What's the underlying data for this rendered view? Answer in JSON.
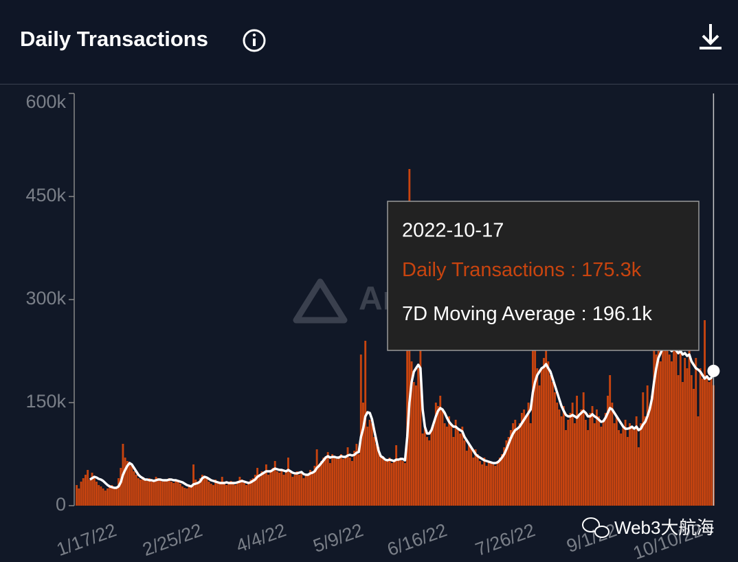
{
  "chart_data": {
    "type": "bar",
    "title": "Daily Transactions",
    "categories": [
      null,
      null,
      null,
      null,
      null,
      null,
      null,
      null,
      null,
      null,
      null,
      null,
      null,
      null,
      null,
      null,
      "1/17/22",
      null,
      null,
      null,
      null,
      null,
      null,
      null,
      null,
      null,
      null,
      null,
      null,
      null,
      null,
      null,
      null,
      null,
      null,
      null,
      null,
      null,
      null,
      null,
      null,
      null,
      null,
      null,
      null,
      null,
      null,
      null,
      null,
      null,
      null,
      null,
      null,
      null,
      null,
      "2/25/22",
      null,
      null,
      null,
      null,
      null,
      null,
      null,
      null,
      null,
      null,
      null,
      null,
      null,
      null,
      null,
      null,
      null,
      null,
      null,
      null,
      null,
      null,
      null,
      null,
      null,
      null,
      null,
      null,
      null,
      null,
      null,
      null,
      null,
      null,
      null,
      null,
      null,
      "4/4/22",
      null,
      null,
      null,
      null,
      null,
      null,
      null,
      null,
      null,
      null,
      null,
      null,
      null,
      null,
      null,
      null,
      null,
      null,
      null,
      null,
      null,
      null,
      null,
      null,
      null,
      null,
      null,
      null,
      null,
      null,
      null,
      null,
      null,
      null,
      "5/9/22",
      null,
      null,
      null,
      null,
      null,
      null,
      null,
      null,
      null,
      null,
      null,
      null,
      null,
      null,
      null,
      null,
      null,
      null,
      null,
      null,
      null,
      null,
      null,
      null,
      null,
      null,
      null,
      null,
      null,
      null,
      null,
      null,
      null,
      null,
      null,
      null,
      null,
      "6/16/22",
      null,
      null,
      null,
      null,
      null,
      null,
      null,
      null,
      null,
      null,
      null,
      null,
      null,
      null,
      null,
      null,
      null,
      null,
      null,
      null,
      null,
      null,
      null,
      null,
      null,
      null,
      null,
      null,
      null,
      null,
      null,
      null,
      null,
      null,
      null,
      null,
      null,
      null,
      null,
      "7/26/22",
      null,
      null,
      null,
      null,
      null,
      null,
      null,
      null,
      null,
      null,
      null,
      null,
      null,
      null,
      null,
      null,
      null,
      null,
      null,
      null,
      null,
      null,
      null,
      null,
      null,
      null,
      null,
      null,
      null,
      null,
      null,
      null,
      null,
      null,
      null,
      null,
      "9/1/22",
      null,
      null,
      null,
      null,
      null,
      null,
      null,
      null,
      null,
      null,
      null,
      null,
      null,
      null,
      null,
      null,
      null,
      null,
      null,
      null,
      null,
      null,
      null,
      null,
      null,
      null,
      null,
      null,
      null,
      null,
      null,
      null,
      null,
      null,
      null,
      null,
      null,
      null,
      "10/10/22",
      null,
      null,
      null,
      null,
      null,
      null,
      null
    ],
    "series": [
      {
        "name": "Daily Transactions",
        "type": "bar",
        "color": "#c8440f",
        "values": [
          30000,
          25000,
          35000,
          40000,
          45000,
          52000,
          38000,
          48000,
          42000,
          35000,
          30000,
          28000,
          25000,
          22000,
          25000,
          28000,
          30000,
          26000,
          25000,
          40000,
          55000,
          90000,
          70000,
          65000,
          60000,
          58000,
          50000,
          45000,
          40000,
          38000,
          42000,
          38000,
          36000,
          40000,
          35000,
          38000,
          42000,
          40000,
          37000,
          35000,
          38000,
          36000,
          40000,
          35000,
          33000,
          38000,
          36000,
          32000,
          28000,
          26000,
          25000,
          30000,
          28000,
          60000,
          38000,
          35000,
          40000,
          45000,
          42000,
          40000,
          35000,
          32000,
          30000,
          38000,
          33000,
          35000,
          42000,
          35000,
          30000,
          32000,
          36000,
          33000,
          30000,
          35000,
          42000,
          38000,
          33000,
          30000,
          35000,
          38000,
          40000,
          45000,
          55000,
          42000,
          50000,
          48000,
          60000,
          45000,
          52000,
          55000,
          65000,
          50000,
          48000,
          52000,
          45000,
          50000,
          70000,
          48000,
          42000,
          45000,
          50000,
          45000,
          48000,
          40000,
          44000,
          46000,
          52000,
          50000,
          58000,
          82000,
          60000,
          65000,
          70000,
          72000,
          78000,
          62000,
          75000,
          70000,
          68000,
          72000,
          75000,
          68000,
          72000,
          85000,
          70000,
          65000,
          80000,
          90000,
          75000,
          220000,
          150000,
          240000,
          115000,
          125000,
          120000,
          100000,
          90000,
          85000,
          70000,
          72000,
          65000,
          68000,
          70000,
          62000,
          64000,
          88000,
          66000,
          70000,
          65000,
          62000,
          240000,
          490000,
          210000,
          180000,
          175000,
          200000,
          230000,
          105000,
          115000,
          100000,
          95000,
          110000,
          120000,
          150000,
          145000,
          160000,
          140000,
          120000,
          115000,
          130000,
          120000,
          100000,
          125000,
          110000,
          105000,
          115000,
          95000,
          80000,
          90000,
          85000,
          70000,
          82000,
          75000,
          65000,
          60000,
          70000,
          58000,
          65000,
          62000,
          60000,
          58000,
          65000,
          70000,
          75000,
          85000,
          95000,
          100000,
          110000,
          120000,
          125000,
          110000,
          120000,
          135000,
          140000,
          130000,
          150000,
          120000,
          250000,
          230000,
          200000,
          175000,
          200000,
          215000,
          240000,
          210000,
          190000,
          180000,
          165000,
          150000,
          140000,
          130000,
          145000,
          110000,
          125000,
          135000,
          150000,
          120000,
          160000,
          130000,
          140000,
          165000,
          125000,
          110000,
          135000,
          145000,
          120000,
          140000,
          130000,
          115000,
          125000,
          135000,
          160000,
          190000,
          150000,
          120000,
          130000,
          110000,
          105000,
          115000,
          125000,
          100000,
          120000,
          115000,
          110000,
          130000,
          85000,
          120000,
          165000,
          130000,
          175000,
          140000,
          160000,
          250000,
          220000,
          280000,
          210000,
          240000,
          260000,
          230000,
          220000,
          210000,
          280000,
          230000,
          190000,
          250000,
          180000,
          215000,
          200000,
          230000,
          190000,
          170000,
          215000,
          130000,
          200000,
          185000,
          270000,
          190000,
          180000,
          185000,
          175300
        ]
      },
      {
        "name": "7D Moving Average",
        "type": "line",
        "color": "#ffffff",
        "values": [
          null,
          null,
          null,
          null,
          null,
          null,
          38000,
          40000,
          42000,
          41000,
          39000,
          38000,
          36000,
          33000,
          30000,
          28000,
          27000,
          26000,
          26000,
          28000,
          34000,
          45000,
          52000,
          58000,
          62000,
          60000,
          55000,
          50000,
          45000,
          42000,
          40000,
          38000,
          38000,
          37000,
          37000,
          36000,
          37000,
          38000,
          38000,
          37000,
          37000,
          37000,
          38000,
          38000,
          37000,
          37000,
          36000,
          35000,
          34000,
          32000,
          30000,
          29000,
          28000,
          31000,
          32000,
          33000,
          35000,
          40000,
          42000,
          41000,
          39000,
          37000,
          36000,
          35000,
          34000,
          33000,
          33000,
          33000,
          34000,
          33000,
          33000,
          33000,
          33000,
          34000,
          35000,
          36000,
          35000,
          34000,
          33000,
          34000,
          36000,
          38000,
          42000,
          44000,
          46000,
          48000,
          50000,
          50000,
          50000,
          52000,
          54000,
          53000,
          52000,
          52000,
          51000,
          50000,
          52000,
          50000,
          48000,
          47000,
          47000,
          48000,
          49000,
          46000,
          45000,
          45000,
          47000,
          48000,
          50000,
          55000,
          58000,
          62000,
          66000,
          70000,
          72000,
          70000,
          71000,
          71000,
          70000,
          70000,
          72000,
          71000,
          71000,
          73000,
          74000,
          73000,
          74000,
          77000,
          78000,
          100000,
          112000,
          130000,
          136000,
          135000,
          126000,
          110000,
          95000,
          80000,
          72000,
          70000,
          67000,
          66000,
          67000,
          66000,
          65000,
          67000,
          67000,
          68000,
          68000,
          66000,
          100000,
          150000,
          180000,
          195000,
          200000,
          205000,
          200000,
          140000,
          115000,
          105000,
          105000,
          110000,
          120000,
          130000,
          138000,
          142000,
          140000,
          135000,
          128000,
          122000,
          118000,
          115000,
          115000,
          112000,
          110000,
          108000,
          100000,
          95000,
          90000,
          85000,
          80000,
          75000,
          72000,
          70000,
          68000,
          66000,
          65000,
          64000,
          63000,
          62000,
          62000,
          63000,
          66000,
          70000,
          75000,
          82000,
          90000,
          98000,
          105000,
          110000,
          112000,
          115000,
          120000,
          125000,
          130000,
          135000,
          140000,
          165000,
          180000,
          190000,
          195000,
          200000,
          202000,
          206000,
          200000,
          195000,
          185000,
          175000,
          165000,
          155000,
          145000,
          138000,
          132000,
          130000,
          130000,
          132000,
          130000,
          128000,
          132000,
          135000,
          138000,
          135000,
          130000,
          130000,
          133000,
          130000,
          128000,
          125000,
          122000,
          123000,
          128000,
          135000,
          142000,
          140000,
          135000,
          130000,
          125000,
          120000,
          115000,
          112000,
          112000,
          113000,
          115000,
          112000,
          115000,
          110000,
          112000,
          118000,
          122000,
          130000,
          140000,
          155000,
          180000,
          200000,
          215000,
          222000,
          230000,
          235000,
          232000,
          228000,
          225000,
          228000,
          226000,
          222000,
          225000,
          220000,
          222000,
          218000,
          220000,
          210000,
          205000,
          200000,
          198000,
          195000,
          190000,
          185000,
          188000,
          184000,
          186000,
          196100
        ]
      }
    ],
    "ylim": [
      0,
      600000
    ],
    "yticks": [
      0,
      {
        "value": 150000,
        "label": "150k"
      },
      {
        "value": 300000,
        "label": "300k"
      },
      {
        "value": 450000,
        "label": "450k"
      },
      {
        "value": 600000,
        "label": "600k"
      }
    ],
    "grid": false,
    "tooltip": {
      "title": "2022-10-17",
      "separator": ":",
      "value_labels": [
        "175.3k",
        "196.1k"
      ]
    },
    "watermark": "Artemis",
    "source_watermark": "Web3大航海"
  }
}
